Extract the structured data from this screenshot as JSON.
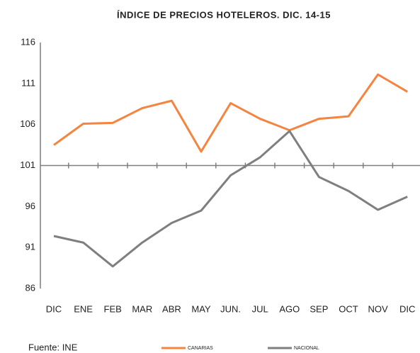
{
  "chart_data": {
    "type": "line",
    "title": "ÍNDICE DE PRECIOS HOTELEROS. DIC. 14-15",
    "source": "Fuente: INE",
    "categories": [
      "DIC",
      "ENE",
      "FEB",
      "MAR",
      "ABR",
      "MAY",
      "JUN.",
      "JUL",
      "AGO",
      "SEP",
      "OCT",
      "NOV",
      "DIC"
    ],
    "series": [
      {
        "name": "CANARIAS",
        "color": "#f4843f",
        "values": [
          103.5,
          106.1,
          106.2,
          108.0,
          108.9,
          102.7,
          108.6,
          106.7,
          105.3,
          106.7,
          107.0,
          112.1,
          110.0
        ]
      },
      {
        "name": "NACIONAL",
        "color": "#7f7f7f",
        "values": [
          92.4,
          91.6,
          88.7,
          91.6,
          94.0,
          95.5,
          99.8,
          102.0,
          105.2,
          99.6,
          97.9,
          95.6,
          97.2
        ]
      }
    ],
    "ylim": [
      86,
      116
    ],
    "yticks": [
      86,
      91,
      96,
      101,
      106,
      111,
      116
    ],
    "xaxis_crosses": 101,
    "grid": false,
    "legend": "bottom"
  }
}
